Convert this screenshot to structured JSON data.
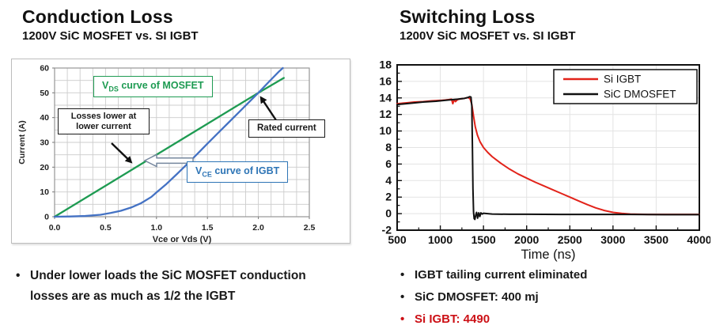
{
  "left_panel": {
    "title": "Conduction Loss",
    "subtitle": "1200V SiC MOSFET vs. SI IGBT",
    "bullet_marker": "•",
    "bullet": "Under lower loads the SiC MOSFET conduction losses are as much as 1/2 the IGBT"
  },
  "right_panel": {
    "title": "Switching Loss",
    "subtitle": "1200V SiC MOSFET vs. SI IGBT",
    "bullet_marker": "•",
    "bullets": [
      {
        "text": "IGBT tailing current eliminated",
        "color": "#1a1a1a"
      },
      {
        "text": "SiC DMOSFET: 400 mj",
        "color": "#1a1a1a"
      },
      {
        "text": "Si IGBT: 4490",
        "color": "#cc1016"
      }
    ]
  },
  "chart_data": [
    {
      "type": "line",
      "title": "Conduction Loss I-V comparison",
      "xlabel": "Vce or Vds (V)",
      "ylabel": "Current (A)",
      "xlim": [
        0,
        2.5
      ],
      "ylim": [
        0,
        60
      ],
      "xticks": [
        0.0,
        0.5,
        1.0,
        1.5,
        2.0,
        2.5
      ],
      "yticks": [
        0,
        10,
        20,
        30,
        40,
        50,
        60
      ],
      "grid": {
        "x_minor": 0.125,
        "y_minor": 5,
        "color": "#cccccc"
      },
      "legend_position": "none",
      "series": [
        {
          "name": "VDS curve of MOSFET",
          "color": "#1e9b52",
          "x": [
            0,
            0.5,
            1.0,
            1.5,
            2.0,
            2.25
          ],
          "y": [
            0,
            12.5,
            25,
            37.5,
            50,
            56
          ]
        },
        {
          "name": "VCE curve of IGBT",
          "color": "#4472c4",
          "x": [
            0,
            0.15,
            0.3,
            0.45,
            0.55,
            0.65,
            0.75,
            0.85,
            0.95,
            1.0,
            1.1,
            1.2,
            1.3,
            1.4,
            1.5,
            1.6,
            1.7,
            1.8,
            1.9,
            2.0,
            2.1,
            2.2,
            2.24
          ],
          "y": [
            0,
            0.1,
            0.3,
            0.8,
            1.5,
            2.4,
            3.7,
            5.5,
            8,
            9.8,
            13.3,
            17.2,
            21.2,
            25.3,
            29.5,
            33.6,
            37.7,
            41.8,
            45.9,
            50,
            54.3,
            58.5,
            60
          ]
        }
      ],
      "annotations": {
        "mosfet_label": {
          "pre": "V",
          "sub": "DS",
          "post": " curve of MOSFET",
          "color": "#1e9b52"
        },
        "igbt_label": {
          "pre": "V",
          "sub": "CE",
          "post": " curve of IGBT",
          "color": "#2e75b6"
        },
        "losses_label": {
          "text": "Losses lower at lower current"
        },
        "rated_label": {
          "text": "Rated current"
        },
        "rated_point": {
          "x": 2.0,
          "y": 50
        }
      }
    },
    {
      "type": "line",
      "title": "Switching Loss turn-off waveforms",
      "xlabel": "Time (ns)",
      "ylabel": "",
      "xlim": [
        500,
        4000
      ],
      "ylim": [
        -2,
        18
      ],
      "xticks": [
        500,
        1000,
        1500,
        2000,
        2500,
        3000,
        3500,
        4000
      ],
      "yticks": [
        -2,
        0,
        2,
        4,
        6,
        8,
        10,
        12,
        14,
        16,
        18
      ],
      "grid": {
        "major_color": "#e3e3e3"
      },
      "minor_tick_x": 250,
      "minor_tick_y": 1,
      "legend_position": "top-right",
      "series": [
        {
          "name": "Si IGBT",
          "color": "#e2231a",
          "x": [
            500,
            600,
            700,
            800,
            900,
            1000,
            1060,
            1100,
            1130,
            1145,
            1160,
            1175,
            1200,
            1240,
            1280,
            1320,
            1345,
            1365,
            1385,
            1405,
            1430,
            1460,
            1500,
            1550,
            1600,
            1650,
            1700,
            1800,
            1900,
            2000,
            2100,
            2200,
            2300,
            2400,
            2500,
            2600,
            2700,
            2800,
            2900,
            3000,
            3100,
            3200,
            3400,
            3600,
            3800,
            4000
          ],
          "y": [
            13.3,
            13.4,
            13.5,
            13.55,
            13.65,
            13.7,
            13.75,
            13.8,
            13.85,
            13.3,
            13.8,
            13.55,
            13.8,
            13.9,
            13.95,
            14.05,
            13.9,
            13.2,
            11.8,
            10.5,
            9.5,
            8.7,
            8.0,
            7.4,
            6.9,
            6.5,
            6.1,
            5.4,
            4.8,
            4.3,
            3.8,
            3.35,
            2.9,
            2.45,
            2.0,
            1.55,
            1.1,
            0.7,
            0.38,
            0.15,
            0.03,
            -0.05,
            -0.1,
            -0.1,
            -0.1,
            -0.1
          ]
        },
        {
          "name": "SiC DMOSFET",
          "color": "#111111",
          "x": [
            500,
            650,
            800,
            950,
            1100,
            1200,
            1280,
            1320,
            1340,
            1355,
            1365,
            1372,
            1378,
            1385,
            1392,
            1400,
            1410,
            1420,
            1432,
            1445,
            1458,
            1470,
            1485,
            1500,
            1600,
            1800,
            2000,
            2400,
            2800,
            3200,
            3600,
            4000
          ],
          "y": [
            13.2,
            13.35,
            13.5,
            13.6,
            13.75,
            13.85,
            13.95,
            14.05,
            14.15,
            14.1,
            13.0,
            8.0,
            3.0,
            0.2,
            -0.6,
            -0.7,
            -0.2,
            0.15,
            -0.55,
            0.1,
            -0.35,
            0.1,
            -0.05,
            0.05,
            -0.05,
            -0.08,
            -0.08,
            -0.1,
            -0.1,
            -0.1,
            -0.12,
            -0.12
          ]
        }
      ]
    }
  ]
}
